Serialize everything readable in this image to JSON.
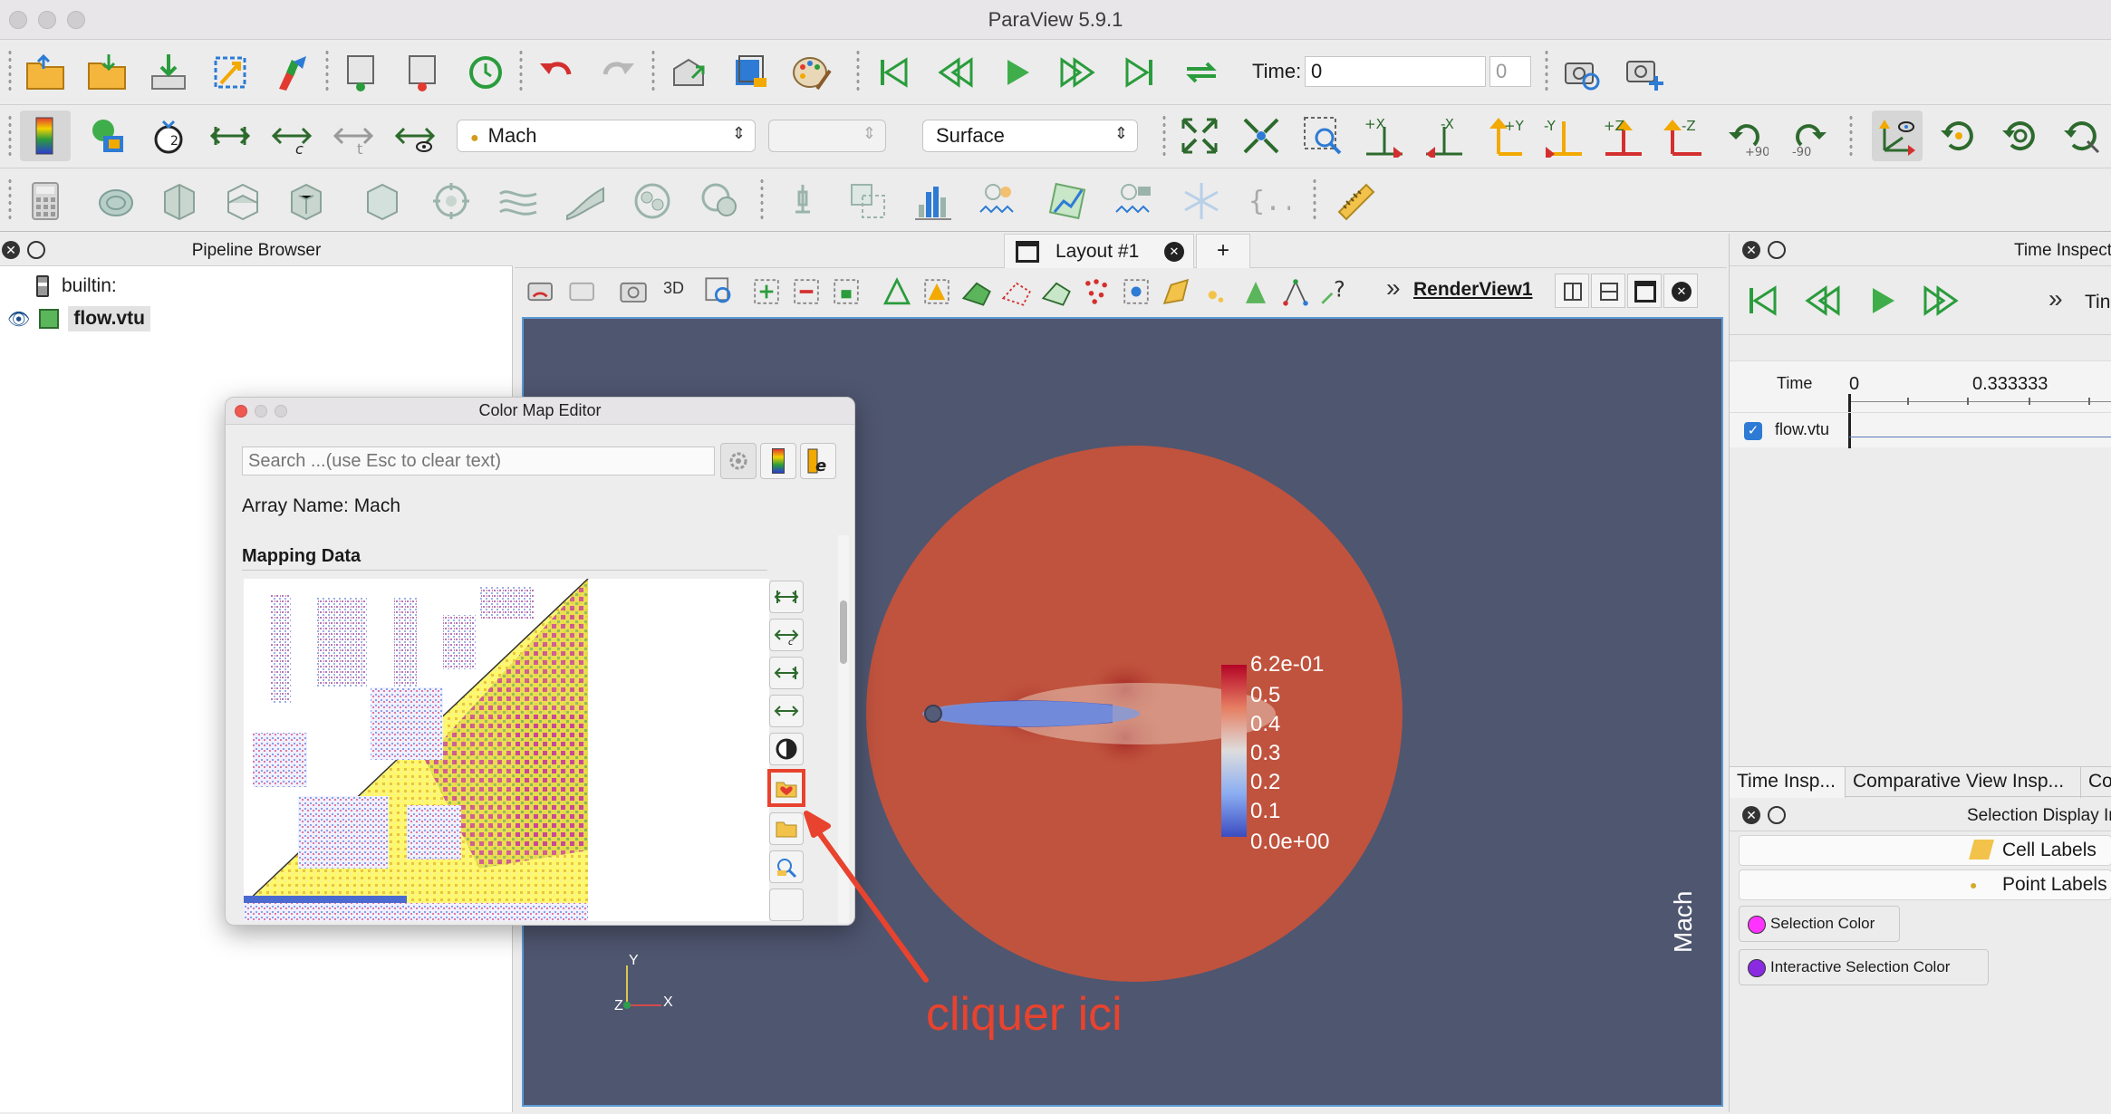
{
  "app": {
    "window_title": "ParaView 5.9.1"
  },
  "toolbar": {
    "time_label": "Time:",
    "time_value": "0",
    "time_index": "0",
    "color_by": "Mach",
    "component": "",
    "representation": "Surface",
    "view_labels": [
      "+X",
      "-X",
      "+Y",
      "-Y",
      "+Z",
      "-Z",
      "+90",
      "-90"
    ]
  },
  "pipeline": {
    "title": "Pipeline Browser",
    "items": [
      {
        "label": "builtin:"
      },
      {
        "label": "flow.vtu"
      }
    ]
  },
  "layout": {
    "tab_label": "Layout #1",
    "add_tab": "+",
    "view_3d": "3D",
    "view_name": "RenderView1",
    "more": "»"
  },
  "colormap_editor": {
    "title": "Color Map Editor",
    "search_placeholder": "Search ...(use Esc to clear text)",
    "array_name": "Array Name: Mach",
    "mapping_data": "Mapping Data"
  },
  "render": {
    "scalar_bar": {
      "title": "Mach",
      "labels": [
        "6.2e-01",
        "0.5",
        "0.4",
        "0.3",
        "0.2",
        "0.1",
        "0.0e+00"
      ]
    },
    "axes": {
      "y": "Y",
      "z": "Z",
      "x": "X"
    },
    "annotation": "cliquer ici"
  },
  "time_inspector": {
    "title": "Time Inspector",
    "more": "»",
    "time_label": "Tin",
    "row_time": "Time",
    "tick_0": "0",
    "tick_1": "0.333333",
    "row_source": "flow.vtu"
  },
  "right_tabs": [
    "Time Insp...",
    "Comparative View Insp...",
    "Co"
  ],
  "selection_display": {
    "title": "Selection Display In",
    "cell_labels": "Cell Labels",
    "point_labels": "Point Labels",
    "selection_color": "Selection Color",
    "interactive_selection_color": "Interactive Selection Color"
  },
  "colors": {
    "selection": "#ff33ff",
    "interactive_selection": "#8a2be2",
    "render_bg": "#4f5670",
    "annotation_red": "#e8432e"
  }
}
